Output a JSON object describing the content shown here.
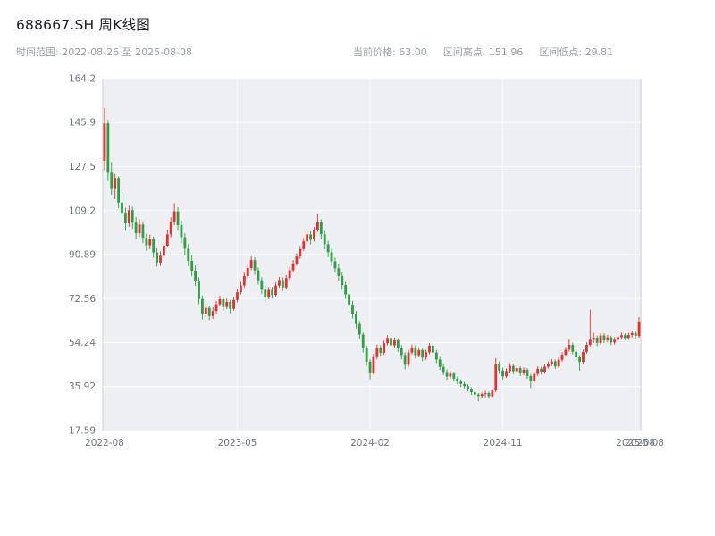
{
  "header": {
    "title": "688667.SH 周K线图",
    "time_range": "时间范围: 2022-08-26 至 2025-08-08",
    "stats": [
      "当前价格: 63.00",
      "区间高点: 151.96",
      "区间低点: 29.81"
    ]
  },
  "chart_data": {
    "type": "candlestick",
    "symbol": "688667.SH",
    "interval": "weekly",
    "start_date": "2022-08-26",
    "end_date": "2025-08-08",
    "current_price": 63.0,
    "range_high": 151.96,
    "range_low": 29.81,
    "ylim": [
      17.59,
      164.2
    ],
    "grid": true,
    "y_ticks": [
      164.2,
      145.9,
      127.5,
      109.2,
      90.89,
      72.56,
      54.24,
      35.92,
      17.59
    ],
    "y_tick_labels": [
      "164.2",
      "145.9",
      "127.5",
      "109.2",
      "90.89",
      "72.56",
      "54.24",
      "35.92",
      "17.59"
    ],
    "x_ticks": [
      {
        "label": "2022-08",
        "index": 0
      },
      {
        "label": "2023-05",
        "index": 38
      },
      {
        "label": "2024-02",
        "index": 76
      },
      {
        "label": "2024-11",
        "index": 114
      },
      {
        "label": "2025-08",
        "index": 152
      }
    ],
    "x_end_label": "2025-08",
    "colors": {
      "up": "#e03131",
      "down": "#2f9e44",
      "panel_bg": "#edeff3",
      "panel_border": "#c9ced6",
      "grid": "#ffffff"
    },
    "candles": [
      [
        130.0,
        151.96,
        126.0,
        145.5
      ],
      [
        145.5,
        147.0,
        121.5,
        125.0
      ],
      [
        125.0,
        129.5,
        115.8,
        118.2
      ],
      [
        118.2,
        124.5,
        114.0,
        122.8
      ],
      [
        122.8,
        123.5,
        110.2,
        112.6
      ],
      [
        112.6,
        116.8,
        105.4,
        108.3
      ],
      [
        108.3,
        110.5,
        100.8,
        103.9
      ],
      [
        103.9,
        111.2,
        102.5,
        109.4
      ],
      [
        109.4,
        110.8,
        101.6,
        104.2
      ],
      [
        104.2,
        106.5,
        97.3,
        99.8
      ],
      [
        99.8,
        105.6,
        98.2,
        103.4
      ],
      [
        103.4,
        104.8,
        95.7,
        97.9
      ],
      [
        97.9,
        99.6,
        92.4,
        94.8
      ],
      [
        94.8,
        99.2,
        93.1,
        97.3
      ],
      [
        97.3,
        98.4,
        89.6,
        91.8
      ],
      [
        91.8,
        93.5,
        85.9,
        87.6
      ],
      [
        87.6,
        92.3,
        86.2,
        90.4
      ],
      [
        90.4,
        96.1,
        89.5,
        94.6
      ],
      [
        94.6,
        101.2,
        93.8,
        99.3
      ],
      [
        99.3,
        106.4,
        98.1,
        104.7
      ],
      [
        104.7,
        112.3,
        103.2,
        108.9
      ],
      [
        108.9,
        110.6,
        100.9,
        103.2
      ],
      [
        103.2,
        105.1,
        95.8,
        98.1
      ],
      [
        98.1,
        99.8,
        90.6,
        93.4
      ],
      [
        93.4,
        95.2,
        86.1,
        88.3
      ],
      [
        88.3,
        90.7,
        82.0,
        84.2
      ],
      [
        84.2,
        86.3,
        77.8,
        80.1
      ],
      [
        80.1,
        81.4,
        70.3,
        72.4
      ],
      [
        72.4,
        73.8,
        63.9,
        66.2
      ],
      [
        66.2,
        70.4,
        64.8,
        68.7
      ],
      [
        68.7,
        69.5,
        63.6,
        65.3
      ],
      [
        65.3,
        68.9,
        64.1,
        67.4
      ],
      [
        67.4,
        71.6,
        66.2,
        70.2
      ],
      [
        70.2,
        73.8,
        69.4,
        72.3
      ],
      [
        72.3,
        73.4,
        67.5,
        69.1
      ],
      [
        69.1,
        72.6,
        68.2,
        71.2
      ],
      [
        71.2,
        72.1,
        66.4,
        68.3
      ],
      [
        68.3,
        73.2,
        67.6,
        72.0
      ],
      [
        72.0,
        76.4,
        71.1,
        75.2
      ],
      [
        75.2,
        79.6,
        74.3,
        78.1
      ],
      [
        78.1,
        83.4,
        77.2,
        82.0
      ],
      [
        82.0,
        86.7,
        81.1,
        85.3
      ],
      [
        85.3,
        90.2,
        84.4,
        88.6
      ],
      [
        88.6,
        89.8,
        82.5,
        84.3
      ],
      [
        84.3,
        85.6,
        78.4,
        80.2
      ],
      [
        80.2,
        81.5,
        74.6,
        76.3
      ],
      [
        76.3,
        77.8,
        71.2,
        73.1
      ],
      [
        73.1,
        77.4,
        72.3,
        76.2
      ],
      [
        76.2,
        77.5,
        72.6,
        74.1
      ],
      [
        74.1,
        79.2,
        73.4,
        78.0
      ],
      [
        78.0,
        81.6,
        77.1,
        80.3
      ],
      [
        80.3,
        81.4,
        75.8,
        77.2
      ],
      [
        77.2,
        82.3,
        76.4,
        81.1
      ],
      [
        81.1,
        85.7,
        80.3,
        84.4
      ],
      [
        84.4,
        88.6,
        83.5,
        87.2
      ],
      [
        87.2,
        91.4,
        86.3,
        90.1
      ],
      [
        90.1,
        94.5,
        89.2,
        93.2
      ],
      [
        93.2,
        97.8,
        92.4,
        96.4
      ],
      [
        96.4,
        100.9,
        95.5,
        99.3
      ],
      [
        99.3,
        100.6,
        95.2,
        97.1
      ],
      [
        97.1,
        102.4,
        96.3,
        101.2
      ],
      [
        101.2,
        107.8,
        100.4,
        104.3
      ],
      [
        104.3,
        105.6,
        97.2,
        99.4
      ],
      [
        99.4,
        100.8,
        93.1,
        95.2
      ],
      [
        95.2,
        96.6,
        89.8,
        91.9
      ],
      [
        91.9,
        93.4,
        86.2,
        88.1
      ],
      [
        88.1,
        89.6,
        83.4,
        85.2
      ],
      [
        85.2,
        86.8,
        80.1,
        82.0
      ],
      [
        82.0,
        83.5,
        76.3,
        78.2
      ],
      [
        78.2,
        79.6,
        72.4,
        74.3
      ],
      [
        74.3,
        75.8,
        68.2,
        70.1
      ],
      [
        70.1,
        71.6,
        64.3,
        66.2
      ],
      [
        66.2,
        67.4,
        60.1,
        62.0
      ],
      [
        62.0,
        63.2,
        55.8,
        57.6
      ],
      [
        57.6,
        58.4,
        50.2,
        52.1
      ],
      [
        52.1,
        53.0,
        44.6,
        46.3
      ],
      [
        46.3,
        47.2,
        38.9,
        41.8
      ],
      [
        41.8,
        49.6,
        40.9,
        48.2
      ],
      [
        48.2,
        53.4,
        47.3,
        52.1
      ],
      [
        52.1,
        53.2,
        48.4,
        50.0
      ],
      [
        50.0,
        55.1,
        49.2,
        54.0
      ],
      [
        54.0,
        57.3,
        53.1,
        56.2
      ],
      [
        56.2,
        57.4,
        51.6,
        53.1
      ],
      [
        53.1,
        56.3,
        52.2,
        55.2
      ],
      [
        55.2,
        56.1,
        50.4,
        52.0
      ],
      [
        52.0,
        53.2,
        47.3,
        49.1
      ],
      [
        49.1,
        50.2,
        43.1,
        45.0
      ],
      [
        45.0,
        51.2,
        44.2,
        50.1
      ],
      [
        50.1,
        53.4,
        49.3,
        52.2
      ],
      [
        52.2,
        53.1,
        47.6,
        49.0
      ],
      [
        49.0,
        52.3,
        48.1,
        51.1
      ],
      [
        51.1,
        52.2,
        46.5,
        48.0
      ],
      [
        48.0,
        51.2,
        47.1,
        50.2
      ],
      [
        50.2,
        54.1,
        49.4,
        53.0
      ],
      [
        53.0,
        54.0,
        48.6,
        50.1
      ],
      [
        50.1,
        51.2,
        45.7,
        47.2
      ],
      [
        47.2,
        48.3,
        42.8,
        44.1
      ],
      [
        44.1,
        45.2,
        40.7,
        42.0
      ],
      [
        42.0,
        43.1,
        38.8,
        40.1
      ],
      [
        40.1,
        42.4,
        39.3,
        41.3
      ],
      [
        41.3,
        42.1,
        38.0,
        39.2
      ],
      [
        39.2,
        40.1,
        36.9,
        38.0
      ],
      [
        38.0,
        38.9,
        35.8,
        37.0
      ],
      [
        37.0,
        37.8,
        35.0,
        36.1
      ],
      [
        36.1,
        36.9,
        33.9,
        35.0
      ],
      [
        35.0,
        35.6,
        32.5,
        33.6
      ],
      [
        33.6,
        34.3,
        31.6,
        32.6
      ],
      [
        32.6,
        33.2,
        29.81,
        32.0
      ],
      [
        32.0,
        33.4,
        31.1,
        32.8
      ],
      [
        32.8,
        34.2,
        31.4,
        33.2
      ],
      [
        33.2,
        33.8,
        30.9,
        31.9
      ],
      [
        31.9,
        35.1,
        31.2,
        34.3
      ],
      [
        34.3,
        47.8,
        33.6,
        45.2
      ],
      [
        45.2,
        46.4,
        41.2,
        42.6
      ],
      [
        42.6,
        43.8,
        38.9,
        40.2
      ],
      [
        40.2,
        43.4,
        39.5,
        42.4
      ],
      [
        42.4,
        45.6,
        41.6,
        44.5
      ],
      [
        44.5,
        45.4,
        41.1,
        42.3
      ],
      [
        42.3,
        44.6,
        41.4,
        43.6
      ],
      [
        43.6,
        44.4,
        40.3,
        41.4
      ],
      [
        41.4,
        43.9,
        40.6,
        42.9
      ],
      [
        42.9,
        43.6,
        39.2,
        40.3
      ],
      [
        40.3,
        41.1,
        35.4,
        38.2
      ],
      [
        38.2,
        42.1,
        37.5,
        41.2
      ],
      [
        41.2,
        44.3,
        40.4,
        43.3
      ],
      [
        43.3,
        44.1,
        40.9,
        42.1
      ],
      [
        42.1,
        45.2,
        41.3,
        44.2
      ],
      [
        44.2,
        46.3,
        43.4,
        45.3
      ],
      [
        45.3,
        47.4,
        44.5,
        46.4
      ],
      [
        46.4,
        47.2,
        43.3,
        44.3
      ],
      [
        44.3,
        48.1,
        43.6,
        47.1
      ],
      [
        47.1,
        50.2,
        46.3,
        49.2
      ],
      [
        49.2,
        52.4,
        48.4,
        51.3
      ],
      [
        51.3,
        55.6,
        50.5,
        53.3
      ],
      [
        53.3,
        54.2,
        49.4,
        50.4
      ],
      [
        50.4,
        51.3,
        46.9,
        48.1
      ],
      [
        48.1,
        49.0,
        42.6,
        46.2
      ],
      [
        46.2,
        51.3,
        45.5,
        50.3
      ],
      [
        50.3,
        54.4,
        49.6,
        53.3
      ],
      [
        53.3,
        67.9,
        52.6,
        55.4
      ],
      [
        55.4,
        58.3,
        54.1,
        56.3
      ],
      [
        56.3,
        57.2,
        52.8,
        54.1
      ],
      [
        54.1,
        58.2,
        53.4,
        57.2
      ],
      [
        57.2,
        58.1,
        54.0,
        55.2
      ],
      [
        55.2,
        57.4,
        54.3,
        56.4
      ],
      [
        56.4,
        57.1,
        53.2,
        54.3
      ],
      [
        54.3,
        56.5,
        53.4,
        55.4
      ],
      [
        55.4,
        57.6,
        54.6,
        56.5
      ],
      [
        56.5,
        58.4,
        55.5,
        57.3
      ],
      [
        57.3,
        58.1,
        55.2,
        56.2
      ],
      [
        56.2,
        58.3,
        55.4,
        57.4
      ],
      [
        57.4,
        59.2,
        56.4,
        58.2
      ],
      [
        58.2,
        59.0,
        55.9,
        57.0
      ],
      [
        57.0,
        64.8,
        56.3,
        63.0
      ]
    ]
  }
}
